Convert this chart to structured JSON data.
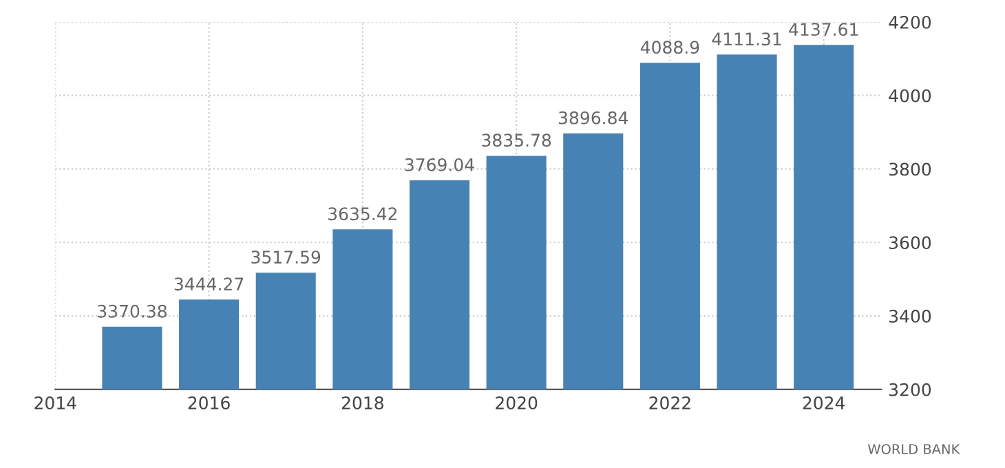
{
  "chart_data": {
    "type": "bar",
    "x": [
      2015,
      2016,
      2017,
      2018,
      2019,
      2020,
      2021,
      2022,
      2023,
      2024
    ],
    "values": [
      3370.38,
      3444.27,
      3517.59,
      3635.42,
      3769.04,
      3835.78,
      3896.84,
      4088.9,
      4111.31,
      4137.61
    ],
    "color": "#4682b4",
    "xlim": [
      2014,
      2024.75
    ],
    "xticks": [
      2014,
      2016,
      2018,
      2020,
      2022,
      2024
    ],
    "ylim": [
      3200,
      4200
    ],
    "yticks": [
      3200,
      3400,
      3600,
      3800,
      4000,
      4200
    ],
    "grid": true,
    "data_labels": true,
    "annotations": [
      "WORLD BANK"
    ]
  }
}
